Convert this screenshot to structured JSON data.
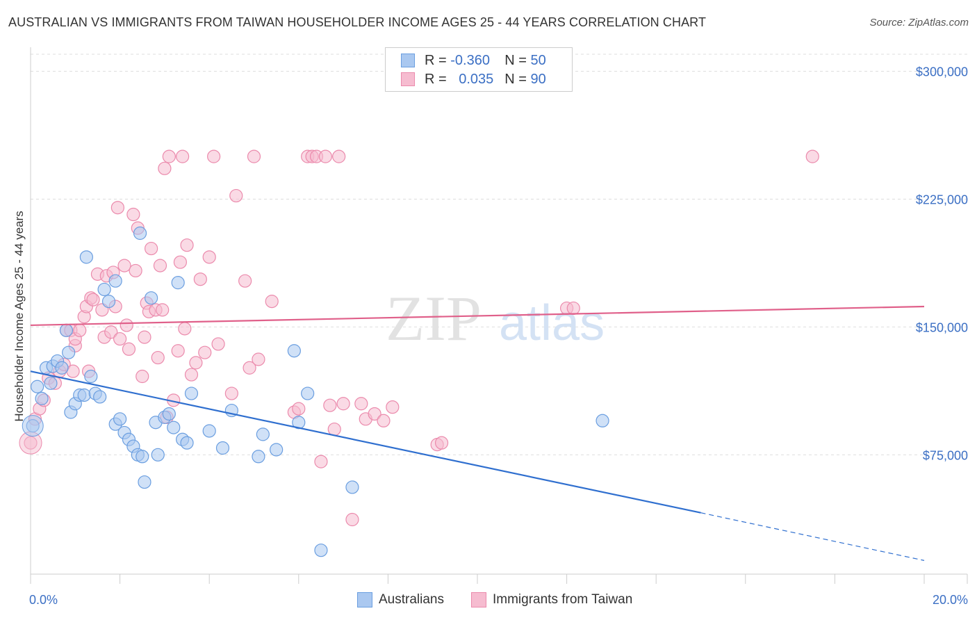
{
  "title": "AUSTRALIAN VS IMMIGRANTS FROM TAIWAN HOUSEHOLDER INCOME AGES 25 - 44 YEARS CORRELATION CHART",
  "source": "Source: ZipAtlas.com",
  "watermark": {
    "zip": "ZIP",
    "atlas": "atlas"
  },
  "legend": {
    "r_label": "R =",
    "n_label": "N =",
    "australians": {
      "r": "-0.360",
      "n": "50"
    },
    "taiwan": {
      "r": "0.035",
      "n": "90"
    }
  },
  "colors": {
    "blue_fill": "#aac8f0",
    "blue_stroke": "#6a9ee0",
    "blue_line": "#2f6fcf",
    "pink_fill": "#f6bcd0",
    "pink_stroke": "#eb8aac",
    "pink_line": "#e0608a",
    "axis_label": "#3b6fc4"
  },
  "chart_data": {
    "type": "scatter",
    "title": "AUSTRALIAN VS IMMIGRANTS FROM TAIWAN HOUSEHOLDER INCOME AGES 25 - 44 YEARS CORRELATION CHART",
    "xlabel": "",
    "ylabel": "Householder Income Ages 25 - 44 years",
    "xlim": [
      0,
      20
    ],
    "ylim": [
      5000,
      310000
    ],
    "x_tick_labels": [
      "0.0%",
      "20.0%"
    ],
    "y_ticks": [
      75000,
      150000,
      225000,
      300000
    ],
    "y_tick_labels": [
      "$75,000",
      "$150,000",
      "$225,000",
      "$300,000"
    ],
    "grid": true,
    "legend_position": "top-center",
    "series": [
      {
        "name": "Australians",
        "r": -0.36,
        "n": 50,
        "trend": {
          "x0": 0,
          "y0": 124000,
          "x1": 15,
          "y1": 41000,
          "dash_to_x": 20,
          "dash_to_y": 13000
        },
        "points": [
          [
            0.05,
            92000
          ],
          [
            0.15,
            115000
          ],
          [
            0.25,
            108000
          ],
          [
            0.35,
            126000
          ],
          [
            0.45,
            117000
          ],
          [
            0.5,
            127000
          ],
          [
            0.6,
            130000
          ],
          [
            0.7,
            126000
          ],
          [
            0.8,
            148000
          ],
          [
            0.85,
            135000
          ],
          [
            0.9,
            100000
          ],
          [
            1.0,
            105000
          ],
          [
            1.1,
            110000
          ],
          [
            1.2,
            110000
          ],
          [
            1.35,
            121000
          ],
          [
            1.45,
            111000
          ],
          [
            1.55,
            109000
          ],
          [
            1.65,
            172000
          ],
          [
            1.75,
            165000
          ],
          [
            1.25,
            191000
          ],
          [
            1.9,
            177000
          ],
          [
            1.9,
            93000
          ],
          [
            2.0,
            96000
          ],
          [
            2.1,
            88000
          ],
          [
            2.2,
            84000
          ],
          [
            2.3,
            80000
          ],
          [
            2.4,
            75000
          ],
          [
            2.45,
            205000
          ],
          [
            2.5,
            74000
          ],
          [
            2.55,
            59000
          ],
          [
            2.7,
            167000
          ],
          [
            2.8,
            94000
          ],
          [
            2.85,
            75000
          ],
          [
            3.0,
            97000
          ],
          [
            3.1,
            99000
          ],
          [
            3.2,
            91000
          ],
          [
            3.3,
            176000
          ],
          [
            3.4,
            84000
          ],
          [
            3.5,
            82000
          ],
          [
            3.6,
            111000
          ],
          [
            4.0,
            89000
          ],
          [
            4.3,
            79000
          ],
          [
            4.5,
            101000
          ],
          [
            5.1,
            74000
          ],
          [
            5.2,
            87000
          ],
          [
            5.5,
            78000
          ],
          [
            5.9,
            136000
          ],
          [
            6.0,
            94000
          ],
          [
            6.2,
            111000
          ],
          [
            7.2,
            56000
          ],
          [
            6.5,
            19000
          ],
          [
            12.8,
            95000
          ]
        ]
      },
      {
        "name": "Immigrants from Taiwan",
        "r": 0.035,
        "n": 90,
        "trend": {
          "x0": 0,
          "y0": 151000,
          "x1": 20,
          "y1": 162000
        },
        "points": [
          [
            0.0,
            82000
          ],
          [
            0.1,
            96000
          ],
          [
            0.2,
            102000
          ],
          [
            0.3,
            107000
          ],
          [
            0.4,
            120000
          ],
          [
            0.55,
            117000
          ],
          [
            0.65,
            124000
          ],
          [
            0.75,
            128000
          ],
          [
            0.8,
            148000
          ],
          [
            0.9,
            148000
          ],
          [
            0.95,
            124000
          ],
          [
            1.0,
            139000
          ],
          [
            1.0,
            143000
          ],
          [
            1.1,
            148000
          ],
          [
            1.2,
            156000
          ],
          [
            1.25,
            162000
          ],
          [
            1.3,
            124000
          ],
          [
            1.35,
            167000
          ],
          [
            1.4,
            166000
          ],
          [
            1.5,
            181000
          ],
          [
            1.6,
            160000
          ],
          [
            1.65,
            144000
          ],
          [
            1.7,
            180000
          ],
          [
            1.8,
            147000
          ],
          [
            1.85,
            182000
          ],
          [
            1.9,
            162000
          ],
          [
            1.95,
            220000
          ],
          [
            2.0,
            143000
          ],
          [
            2.1,
            186000
          ],
          [
            2.15,
            151000
          ],
          [
            2.2,
            137000
          ],
          [
            2.3,
            216000
          ],
          [
            2.35,
            183000
          ],
          [
            2.4,
            208000
          ],
          [
            2.5,
            121000
          ],
          [
            2.55,
            144000
          ],
          [
            2.6,
            164000
          ],
          [
            2.65,
            159000
          ],
          [
            2.7,
            196000
          ],
          [
            2.8,
            160000
          ],
          [
            2.85,
            132000
          ],
          [
            2.9,
            186000
          ],
          [
            2.95,
            160000
          ],
          [
            3.0,
            243000
          ],
          [
            3.05,
            97000
          ],
          [
            3.1,
            250000
          ],
          [
            3.2,
            107000
          ],
          [
            3.3,
            136000
          ],
          [
            3.35,
            188000
          ],
          [
            3.4,
            250000
          ],
          [
            3.45,
            149000
          ],
          [
            3.5,
            198000
          ],
          [
            3.6,
            122000
          ],
          [
            3.7,
            129000
          ],
          [
            3.8,
            178000
          ],
          [
            3.9,
            135000
          ],
          [
            4.0,
            191000
          ],
          [
            4.1,
            250000
          ],
          [
            4.2,
            140000
          ],
          [
            4.5,
            111000
          ],
          [
            4.6,
            227000
          ],
          [
            4.8,
            177000
          ],
          [
            4.9,
            126000
          ],
          [
            5.0,
            250000
          ],
          [
            5.1,
            131000
          ],
          [
            5.4,
            165000
          ],
          [
            5.9,
            100000
          ],
          [
            6.0,
            102000
          ],
          [
            6.2,
            250000
          ],
          [
            6.3,
            250000
          ],
          [
            6.4,
            250000
          ],
          [
            6.5,
            71000
          ],
          [
            6.6,
            250000
          ],
          [
            6.7,
            104000
          ],
          [
            6.8,
            90000
          ],
          [
            6.9,
            250000
          ],
          [
            7.0,
            105000
          ],
          [
            7.2,
            37000
          ],
          [
            7.4,
            105000
          ],
          [
            7.5,
            96000
          ],
          [
            7.7,
            99000
          ],
          [
            7.9,
            95000
          ],
          [
            8.1,
            103000
          ],
          [
            9.1,
            81000
          ],
          [
            9.2,
            82000
          ],
          [
            12.0,
            161000
          ],
          [
            12.15,
            161000
          ],
          [
            17.5,
            250000
          ]
        ]
      }
    ]
  },
  "bottom_legend": {
    "australians": "Australians",
    "taiwan": "Immigrants from Taiwan"
  }
}
